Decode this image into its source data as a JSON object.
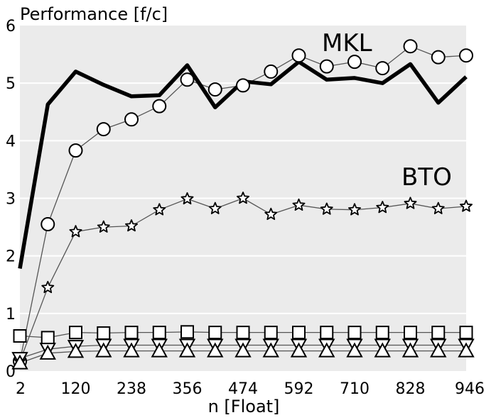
{
  "chart_data": {
    "type": "line",
    "title": "",
    "ylabel": "Performance [f/c]",
    "xlabel": "n [Float]",
    "xlim": [
      2,
      946
    ],
    "ylim": [
      0,
      6
    ],
    "x_ticks": [
      2,
      120,
      238,
      356,
      474,
      592,
      710,
      828,
      946
    ],
    "y_ticks": [
      0,
      1,
      2,
      3,
      4,
      5,
      6
    ],
    "grid": true,
    "series_labels": {
      "mkl": "MKL",
      "bto": "BTO"
    },
    "series": [
      {
        "id": "mkl",
        "marker": "none",
        "x": [
          2,
          61,
          120,
          179,
          238,
          297,
          356,
          415,
          474,
          533,
          592,
          651,
          710,
          769,
          828,
          887,
          946
        ],
        "y": [
          1.78,
          4.63,
          5.2,
          4.97,
          4.77,
          4.79,
          5.31,
          4.58,
          5.03,
          4.98,
          5.37,
          5.06,
          5.09,
          5.0,
          5.33,
          4.66,
          5.11
        ]
      },
      {
        "id": "circles",
        "marker": "circle",
        "x": [
          2,
          61,
          120,
          179,
          238,
          297,
          356,
          415,
          474,
          533,
          592,
          651,
          710,
          769,
          828,
          887,
          946
        ],
        "y": [
          0.17,
          2.55,
          3.83,
          4.2,
          4.37,
          4.6,
          5.06,
          4.89,
          4.96,
          5.2,
          5.48,
          5.29,
          5.37,
          5.26,
          5.64,
          5.45,
          5.48
        ]
      },
      {
        "id": "bto",
        "marker": "star",
        "x": [
          2,
          61,
          120,
          179,
          238,
          297,
          356,
          415,
          474,
          533,
          592,
          651,
          710,
          769,
          828,
          887,
          946
        ],
        "y": [
          0.17,
          1.45,
          2.42,
          2.5,
          2.52,
          2.8,
          2.99,
          2.82,
          3.0,
          2.72,
          2.88,
          2.81,
          2.8,
          2.84,
          2.91,
          2.82,
          2.86
        ]
      },
      {
        "id": "squares",
        "marker": "square",
        "x": [
          2,
          61,
          120,
          179,
          238,
          297,
          356,
          415,
          474,
          533,
          592,
          651,
          710,
          769,
          828,
          887,
          946
        ],
        "y": [
          0.61,
          0.58,
          0.67,
          0.66,
          0.67,
          0.67,
          0.68,
          0.67,
          0.67,
          0.67,
          0.67,
          0.67,
          0.67,
          0.67,
          0.67,
          0.67,
          0.67
        ]
      },
      {
        "id": "down-triangles",
        "marker": "triangle-down",
        "x": [
          2,
          61,
          120,
          179,
          238,
          297,
          356,
          415,
          474,
          533,
          592,
          651,
          710,
          769,
          828,
          887,
          946
        ],
        "y": [
          0.22,
          0.38,
          0.43,
          0.45,
          0.45,
          0.45,
          0.45,
          0.45,
          0.45,
          0.45,
          0.45,
          0.45,
          0.45,
          0.45,
          0.45,
          0.45,
          0.45
        ]
      },
      {
        "id": "up-triangles",
        "marker": "triangle-up",
        "x": [
          2,
          61,
          120,
          179,
          238,
          297,
          356,
          415,
          474,
          533,
          592,
          651,
          710,
          769,
          828,
          887,
          946
        ],
        "y": [
          0.14,
          0.31,
          0.34,
          0.35,
          0.35,
          0.35,
          0.35,
          0.35,
          0.35,
          0.35,
          0.35,
          0.35,
          0.35,
          0.35,
          0.35,
          0.35,
          0.35
        ]
      }
    ],
    "colors": {
      "plot_background": "#ebebeb",
      "grid": "#ffffff",
      "mkl_line": "#000000",
      "thin_line": "#555555",
      "marker_fill": "#ffffff",
      "marker_stroke": "#000000"
    }
  }
}
